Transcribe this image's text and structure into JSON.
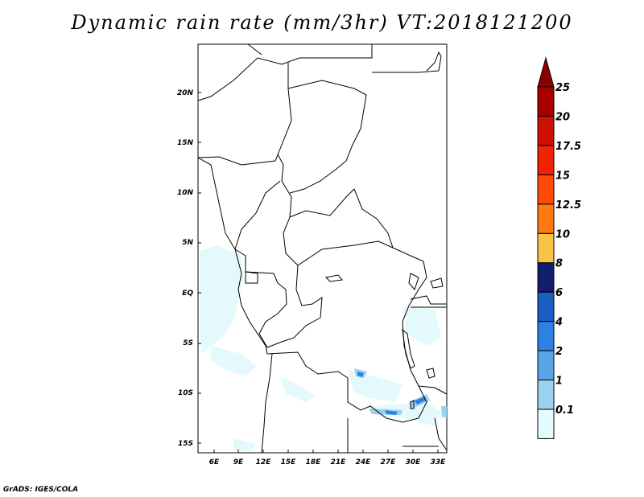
{
  "title": "Dynamic rain rate (mm/3hr) VT:2018121200",
  "footer": "GrADS: IGES/COLA",
  "lat_labels": [
    "20N",
    "15N",
    "10N",
    "5N",
    "EQ",
    "5S",
    "10S",
    "15S"
  ],
  "lon_labels": [
    "6E",
    "9E",
    "12E",
    "15E",
    "18E",
    "21E",
    "24E",
    "27E",
    "30E",
    "33E"
  ],
  "colorbar": {
    "levels": [
      "0.1",
      "1",
      "2",
      "4",
      "6",
      "8",
      "10",
      "12.5",
      "15",
      "17.5",
      "20",
      "25"
    ],
    "colors": [
      "#e6fcfc",
      "#9bd2f0",
      "#5aa5e6",
      "#2b82e0",
      "#1c5fc4",
      "#141d6b",
      "#f8c445",
      "#ff7a10",
      "#ff4a05",
      "#f22205",
      "#d01005",
      "#a80000"
    ],
    "triangle_top_color": "#8c0000",
    "triangle_bottom_color": "#ffffff"
  }
}
